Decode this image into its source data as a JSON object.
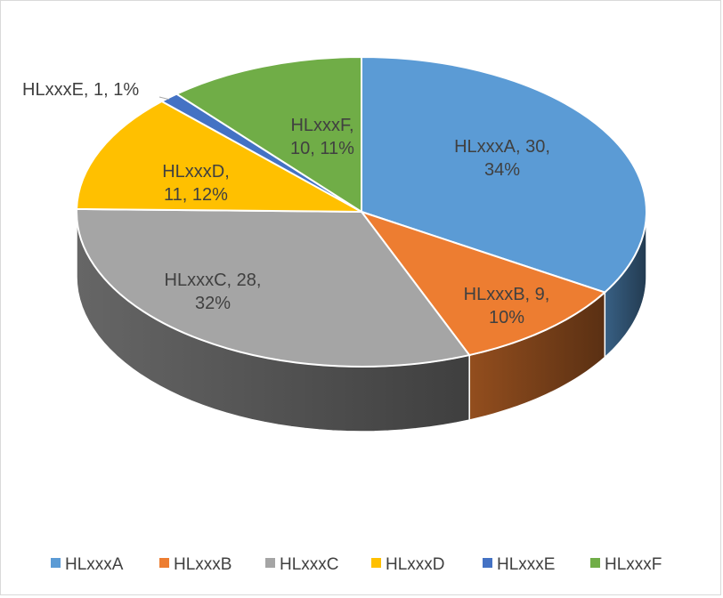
{
  "chart_data": {
    "type": "pie",
    "title": "",
    "style": "3d",
    "legend_position": "bottom",
    "categories": [
      "HLxxxA",
      "HLxxxB",
      "HLxxxC",
      "HLxxxD",
      "HLxxxE",
      "HLxxxF"
    ],
    "values": [
      30,
      9,
      28,
      11,
      1,
      10
    ],
    "percents": [
      "34%",
      "10%",
      "32%",
      "12%",
      "1%",
      "11%"
    ],
    "colors": [
      "#5b9bd5",
      "#ed7d31",
      "#a5a5a5",
      "#ffc000",
      "#4472c4",
      "#70ad47"
    ],
    "data_labels": [
      [
        "HLxxxA, 30,",
        "34%"
      ],
      [
        "HLxxxB, 9,",
        "10%"
      ],
      [
        "HLxxxC, 28,",
        "32%"
      ],
      [
        "HLxxxD,",
        "11, 12%"
      ],
      [
        "HLxxxE, 1, 1%"
      ],
      [
        "HLxxxF,",
        "10, 11%"
      ]
    ]
  }
}
